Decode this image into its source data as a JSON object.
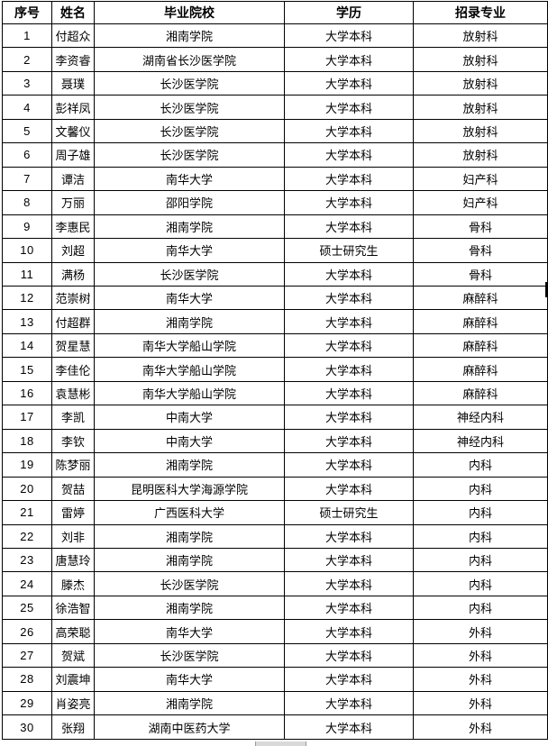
{
  "table": {
    "columns": [
      {
        "key": "seq",
        "label": "序号"
      },
      {
        "key": "name",
        "label": "姓名"
      },
      {
        "key": "school",
        "label": "毕业院校"
      },
      {
        "key": "degree",
        "label": "学历"
      },
      {
        "key": "specialty",
        "label": "招录专业"
      }
    ],
    "rows": [
      {
        "seq": "1",
        "name": "付超众",
        "school": "湘南学院",
        "degree": "大学本科",
        "specialty": "放射科"
      },
      {
        "seq": "2",
        "name": "李资睿",
        "school": "湖南省长沙医学院",
        "degree": "大学本科",
        "specialty": "放射科"
      },
      {
        "seq": "3",
        "name": "聂璞",
        "school": "长沙医学院",
        "degree": "大学本科",
        "specialty": "放射科"
      },
      {
        "seq": "4",
        "name": "彭祥凤",
        "school": "长沙医学院",
        "degree": "大学本科",
        "specialty": "放射科"
      },
      {
        "seq": "5",
        "name": "文馨仪",
        "school": "长沙医学院",
        "degree": "大学本科",
        "specialty": "放射科"
      },
      {
        "seq": "6",
        "name": "周子雄",
        "school": "长沙医学院",
        "degree": "大学本科",
        "specialty": "放射科"
      },
      {
        "seq": "7",
        "name": "谭洁",
        "school": "南华大学",
        "degree": "大学本科",
        "specialty": "妇产科"
      },
      {
        "seq": "8",
        "name": "万丽",
        "school": "邵阳学院",
        "degree": "大学本科",
        "specialty": "妇产科"
      },
      {
        "seq": "9",
        "name": "李惠民",
        "school": "湘南学院",
        "degree": "大学本科",
        "specialty": "骨科"
      },
      {
        "seq": "10",
        "name": "刘超",
        "school": "南华大学",
        "degree": "硕士研究生",
        "specialty": "骨科"
      },
      {
        "seq": "11",
        "name": "满杨",
        "school": "长沙医学院",
        "degree": "大学本科",
        "specialty": "骨科"
      },
      {
        "seq": "12",
        "name": "范崇树",
        "school": "南华大学",
        "degree": "大学本科",
        "specialty": "麻醉科"
      },
      {
        "seq": "13",
        "name": "付超群",
        "school": "湘南学院",
        "degree": "大学本科",
        "specialty": "麻醉科"
      },
      {
        "seq": "14",
        "name": "贺星慧",
        "school": "南华大学船山学院",
        "degree": "大学本科",
        "specialty": "麻醉科"
      },
      {
        "seq": "15",
        "name": "李佳伦",
        "school": "南华大学船山学院",
        "degree": "大学本科",
        "specialty": "麻醉科"
      },
      {
        "seq": "16",
        "name": "袁慧彬",
        "school": "南华大学船山学院",
        "degree": "大学本科",
        "specialty": "麻醉科"
      },
      {
        "seq": "17",
        "name": "李凯",
        "school": "中南大学",
        "degree": "大学本科",
        "specialty": "神经内科"
      },
      {
        "seq": "18",
        "name": "李钦",
        "school": "中南大学",
        "degree": "大学本科",
        "specialty": "神经内科"
      },
      {
        "seq": "19",
        "name": "陈梦丽",
        "school": "湘南学院",
        "degree": "大学本科",
        "specialty": "内科"
      },
      {
        "seq": "20",
        "name": "贺喆",
        "school": "昆明医科大学海源学院",
        "degree": "大学本科",
        "specialty": "内科"
      },
      {
        "seq": "21",
        "name": "雷婷",
        "school": "广西医科大学",
        "degree": "硕士研究生",
        "specialty": "内科"
      },
      {
        "seq": "22",
        "name": "刘非",
        "school": "湘南学院",
        "degree": "大学本科",
        "specialty": "内科"
      },
      {
        "seq": "23",
        "name": "唐慧玲",
        "school": "湘南学院",
        "degree": "大学本科",
        "specialty": "内科"
      },
      {
        "seq": "24",
        "name": "滕杰",
        "school": "长沙医学院",
        "degree": "大学本科",
        "specialty": "内科"
      },
      {
        "seq": "25",
        "name": "徐浩智",
        "school": "湘南学院",
        "degree": "大学本科",
        "specialty": "内科"
      },
      {
        "seq": "26",
        "name": "高荣聪",
        "school": "南华大学",
        "degree": "大学本科",
        "specialty": "外科"
      },
      {
        "seq": "27",
        "name": "贺斌",
        "school": "长沙医学院",
        "degree": "大学本科",
        "specialty": "外科"
      },
      {
        "seq": "28",
        "name": "刘震坤",
        "school": "南华大学",
        "degree": "大学本科",
        "specialty": "外科"
      },
      {
        "seq": "29",
        "name": "肖姿亮",
        "school": "湘南学院",
        "degree": "大学本科",
        "specialty": "外科"
      },
      {
        "seq": "30",
        "name": "张翔",
        "school": "湖南中医药大学",
        "degree": "大学本科",
        "specialty": "外科"
      }
    ]
  },
  "colors": {
    "border": "#000000",
    "text": "#000000",
    "background": "#ffffff",
    "artifact_gray": "#d9d9d9"
  }
}
